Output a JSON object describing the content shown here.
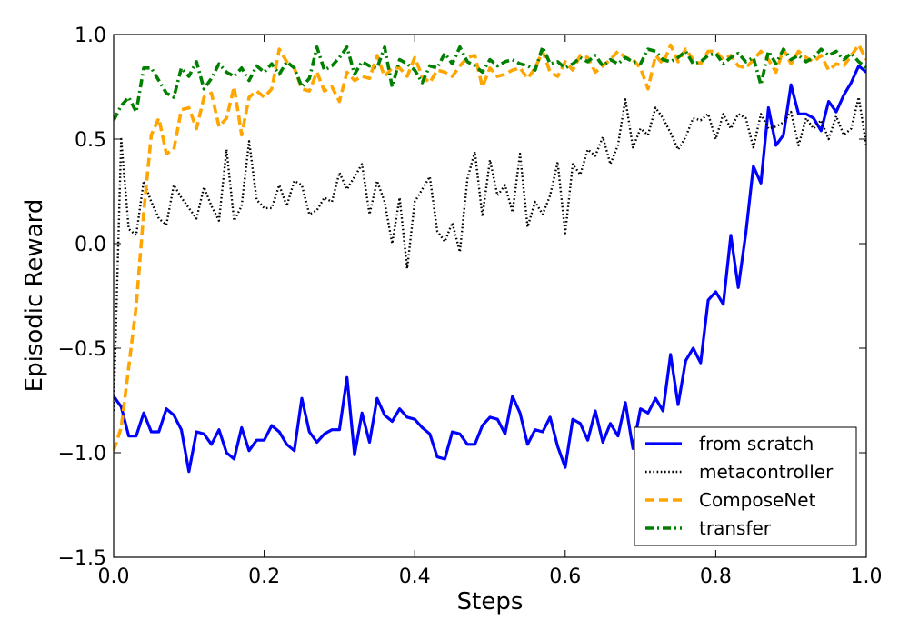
{
  "chart_data": {
    "type": "line",
    "title": "",
    "xlabel": "Steps",
    "ylabel": "Episodic Reward",
    "xlim": [
      0.0,
      1.0
    ],
    "ylim": [
      -1.5,
      1.0
    ],
    "grid": false,
    "legend_position": "lower-right",
    "x_ticks": [
      0.0,
      0.2,
      0.4,
      0.6,
      0.8,
      1.0
    ],
    "x_tick_labels": [
      "0.0",
      "0.2",
      "0.4",
      "0.6",
      "0.8",
      "1.0"
    ],
    "y_ticks": [
      -1.5,
      -1.0,
      -0.5,
      0.0,
      0.5,
      1.0
    ],
    "y_tick_labels": [
      "−1.5",
      "−1.0",
      "−0.5",
      "0.0",
      "0.5",
      "1.0"
    ],
    "x": [
      0.0,
      0.01,
      0.02,
      0.03,
      0.04,
      0.05,
      0.06,
      0.07,
      0.08,
      0.09,
      0.1,
      0.11,
      0.12,
      0.13,
      0.14,
      0.15,
      0.16,
      0.17,
      0.18,
      0.19,
      0.2,
      0.21,
      0.22,
      0.23,
      0.24,
      0.25,
      0.26,
      0.27,
      0.28,
      0.29,
      0.3,
      0.31,
      0.32,
      0.33,
      0.34,
      0.35,
      0.36,
      0.37,
      0.38,
      0.39,
      0.4,
      0.41,
      0.42,
      0.43,
      0.44,
      0.45,
      0.46,
      0.47,
      0.48,
      0.49,
      0.5,
      0.51,
      0.52,
      0.53,
      0.54,
      0.55,
      0.56,
      0.57,
      0.58,
      0.59,
      0.6,
      0.61,
      0.62,
      0.63,
      0.64,
      0.65,
      0.66,
      0.67,
      0.68,
      0.69,
      0.7,
      0.71,
      0.72,
      0.73,
      0.74,
      0.75,
      0.76,
      0.77,
      0.78,
      0.79,
      0.8,
      0.81,
      0.82,
      0.83,
      0.84,
      0.85,
      0.86,
      0.87,
      0.88,
      0.89,
      0.9,
      0.91,
      0.92,
      0.93,
      0.94,
      0.95,
      0.96,
      0.97,
      0.98,
      0.99,
      1.0
    ],
    "series": [
      {
        "name": "from scratch",
        "color": "#0000ff",
        "style": "solid",
        "values": [
          -0.73,
          -0.78,
          -0.92,
          -0.92,
          -0.81,
          -0.9,
          -0.9,
          -0.79,
          -0.82,
          -0.89,
          -1.09,
          -0.9,
          -0.91,
          -0.96,
          -0.89,
          -1.0,
          -1.03,
          -0.88,
          -0.99,
          -0.94,
          -0.94,
          -0.87,
          -0.9,
          -0.96,
          -0.99,
          -0.74,
          -0.9,
          -0.95,
          -0.91,
          -0.89,
          -0.89,
          -0.64,
          -1.01,
          -0.81,
          -0.95,
          -0.74,
          -0.82,
          -0.85,
          -0.79,
          -0.83,
          -0.84,
          -0.88,
          -0.91,
          -1.02,
          -1.03,
          -0.9,
          -0.91,
          -0.96,
          -0.96,
          -0.87,
          -0.83,
          -0.84,
          -0.91,
          -0.73,
          -0.81,
          -0.96,
          -0.89,
          -0.9,
          -0.83,
          -0.97,
          -1.07,
          -0.84,
          -0.86,
          -0.94,
          -0.8,
          -0.95,
          -0.86,
          -0.92,
          -0.76,
          -0.98,
          -0.79,
          -0.81,
          -0.74,
          -0.8,
          -0.53,
          -0.77,
          -0.56,
          -0.5,
          -0.57,
          -0.27,
          -0.23,
          -0.29,
          0.04,
          -0.21,
          0.05,
          0.37,
          0.29,
          0.65,
          0.47,
          0.52,
          0.76,
          0.62,
          0.62,
          0.6,
          0.54,
          0.68,
          0.63,
          0.71,
          0.77,
          0.85,
          0.82
        ]
      },
      {
        "name": "metacontroller",
        "color": "#000000",
        "style": "dotted",
        "values": [
          -0.8,
          0.5,
          0.07,
          0.04,
          0.3,
          0.2,
          0.12,
          0.09,
          0.28,
          0.22,
          0.17,
          0.12,
          0.27,
          0.18,
          0.11,
          0.45,
          0.11,
          0.18,
          0.49,
          0.21,
          0.17,
          0.17,
          0.28,
          0.18,
          0.3,
          0.28,
          0.14,
          0.16,
          0.22,
          0.2,
          0.34,
          0.26,
          0.32,
          0.38,
          0.14,
          0.3,
          0.2,
          0.0,
          0.22,
          -0.12,
          0.2,
          0.26,
          0.32,
          0.06,
          0.01,
          0.1,
          -0.04,
          0.31,
          0.44,
          0.13,
          0.4,
          0.23,
          0.28,
          0.15,
          0.43,
          0.08,
          0.2,
          0.14,
          0.23,
          0.39,
          0.05,
          0.38,
          0.33,
          0.45,
          0.42,
          0.51,
          0.38,
          0.47,
          0.69,
          0.46,
          0.55,
          0.52,
          0.65,
          0.6,
          0.53,
          0.45,
          0.51,
          0.6,
          0.59,
          0.62,
          0.5,
          0.62,
          0.55,
          0.62,
          0.6,
          0.46,
          0.62,
          0.55,
          0.56,
          0.58,
          0.63,
          0.47,
          0.6,
          0.55,
          0.59,
          0.5,
          0.61,
          0.52,
          0.55,
          0.7,
          0.47
        ]
      },
      {
        "name": "ComposeNet",
        "color": "#ffa500",
        "style": "dashed",
        "values": [
          -0.99,
          -0.88,
          -0.59,
          -0.3,
          0.15,
          0.52,
          0.6,
          0.43,
          0.45,
          0.64,
          0.65,
          0.55,
          0.7,
          0.72,
          0.56,
          0.6,
          0.75,
          0.52,
          0.7,
          0.73,
          0.7,
          0.74,
          0.93,
          0.87,
          0.84,
          0.74,
          0.73,
          0.82,
          0.73,
          0.75,
          0.68,
          0.82,
          0.78,
          0.8,
          0.79,
          0.9,
          0.8,
          0.84,
          0.84,
          0.8,
          0.89,
          0.8,
          0.77,
          0.83,
          0.82,
          0.8,
          0.85,
          0.89,
          0.9,
          0.75,
          0.84,
          0.8,
          0.81,
          0.83,
          0.84,
          0.79,
          0.84,
          0.92,
          0.82,
          0.8,
          0.87,
          0.83,
          0.9,
          0.89,
          0.82,
          0.85,
          0.88,
          0.92,
          0.89,
          0.88,
          0.84,
          0.74,
          0.9,
          0.86,
          0.95,
          0.87,
          0.93,
          0.88,
          0.86,
          0.92,
          0.92,
          0.88,
          0.9,
          0.85,
          0.84,
          0.88,
          0.92,
          0.88,
          0.82,
          0.93,
          0.86,
          0.92,
          0.89,
          0.87,
          0.9,
          0.83,
          0.86,
          0.85,
          0.9,
          0.95,
          0.88
        ]
      },
      {
        "name": "transfer",
        "color": "#008000",
        "style": "dashdot",
        "values": [
          0.59,
          0.66,
          0.7,
          0.63,
          0.84,
          0.84,
          0.78,
          0.72,
          0.7,
          0.84,
          0.8,
          0.87,
          0.74,
          0.79,
          0.86,
          0.82,
          0.8,
          0.84,
          0.78,
          0.85,
          0.82,
          0.86,
          0.81,
          0.87,
          0.84,
          0.75,
          0.79,
          0.94,
          0.83,
          0.85,
          0.89,
          0.94,
          0.81,
          0.87,
          0.85,
          0.84,
          0.94,
          0.75,
          0.88,
          0.86,
          0.83,
          0.77,
          0.85,
          0.84,
          0.91,
          0.86,
          0.94,
          0.87,
          0.85,
          0.82,
          0.88,
          0.85,
          0.87,
          0.88,
          0.86,
          0.85,
          0.83,
          0.94,
          0.86,
          0.87,
          0.84,
          0.86,
          0.89,
          0.87,
          0.9,
          0.85,
          0.88,
          0.86,
          0.89,
          0.87,
          0.86,
          0.93,
          0.92,
          0.88,
          0.87,
          0.89,
          0.92,
          0.86,
          0.87,
          0.9,
          0.91,
          0.86,
          0.89,
          0.91,
          0.87,
          0.89,
          0.76,
          0.92,
          0.86,
          0.93,
          0.88,
          0.9,
          0.87,
          0.89,
          0.93,
          0.9,
          0.92,
          0.88,
          0.91,
          0.87,
          0.84
        ]
      }
    ]
  }
}
